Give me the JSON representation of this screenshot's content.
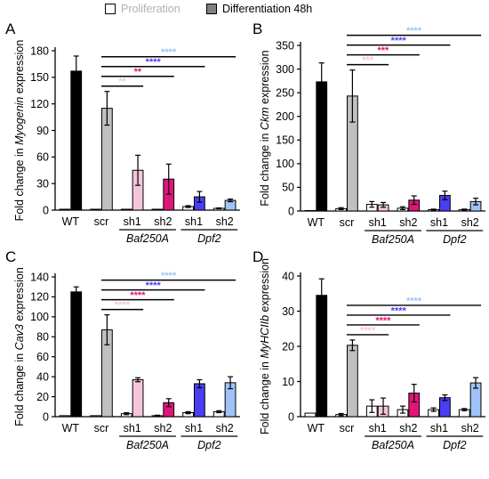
{
  "legend": {
    "proliferation": "Proliferation",
    "differentiation": "Differentiation 48h",
    "colors": {
      "proliferation": "#ffffff",
      "differentiation": "#808080"
    }
  },
  "colors": {
    "WT": "#000000",
    "scr": "#c0c0c0",
    "Baf250A-sh1": "#f4c6dc",
    "Baf250A-sh2": "#e0157a",
    "Dpf2-sh1": "#4a3ef2",
    "Dpf2-sh2": "#9fc3f7"
  },
  "chart_data": [
    {
      "panel": "A",
      "type": "bar",
      "ylabel_prefix": "Fold change in ",
      "ylabel_gene": "Myogenin",
      "ylabel_suffix": " expression",
      "ylim": [
        0,
        180
      ],
      "yticks": [
        "0",
        "30",
        "60",
        "90",
        "120",
        "150",
        "180"
      ],
      "categories": [
        "WT",
        "scr",
        "sh1",
        "sh2",
        "sh1",
        "sh2"
      ],
      "groups": [
        "Baf250A",
        "Dpf2"
      ],
      "series": [
        {
          "name": "Proliferation",
          "values": [
            1,
            1,
            1,
            1,
            4,
            2
          ],
          "errors": [
            0,
            0,
            0,
            0,
            1,
            0.5
          ]
        },
        {
          "name": "Differentiation 48h",
          "values": [
            157,
            115,
            45,
            35,
            15,
            11
          ],
          "errors": [
            17,
            19,
            17,
            17,
            6,
            1.5
          ]
        }
      ],
      "significance": [
        {
          "to": "Dpf2 sh2",
          "label": "****",
          "color": "#9fc3f7"
        },
        {
          "to": "Dpf2 sh1",
          "label": "****",
          "color": "#4a3ef2"
        },
        {
          "to": "Baf250A sh2",
          "label": "**",
          "color": "#e0157a"
        },
        {
          "to": "Baf250A sh1",
          "label": "**",
          "color": "#f4c6dc"
        }
      ]
    },
    {
      "panel": "B",
      "type": "bar",
      "ylabel_prefix": "Fold change in ",
      "ylabel_gene": "Ckm",
      "ylabel_suffix": " expression",
      "ylim": [
        0,
        350
      ],
      "yticks": [
        "0",
        "50",
        "100",
        "150",
        "200",
        "250",
        "300",
        "350"
      ],
      "categories": [
        "WT",
        "scr",
        "sh1",
        "sh2",
        "sh1",
        "sh2"
      ],
      "groups": [
        "Baf250A",
        "Dpf2"
      ],
      "series": [
        {
          "name": "Proliferation",
          "values": [
            1,
            5,
            14,
            6,
            3,
            3
          ],
          "errors": [
            0,
            2,
            6,
            3,
            1,
            1
          ]
        },
        {
          "name": "Differentiation 48h",
          "values": [
            273,
            243,
            13,
            23,
            33,
            20
          ],
          "errors": [
            40,
            55,
            5,
            9,
            9,
            7
          ]
        }
      ],
      "significance": [
        {
          "to": "Dpf2 sh2",
          "label": "****",
          "color": "#9fc3f7"
        },
        {
          "to": "Dpf2 sh1",
          "label": "****",
          "color": "#4a3ef2"
        },
        {
          "to": "Baf250A sh2",
          "label": "***",
          "color": "#e0157a"
        },
        {
          "to": "Baf250A sh1",
          "label": "***",
          "color": "#f4c6dc"
        }
      ]
    },
    {
      "panel": "C",
      "type": "bar",
      "ylabel_prefix": "Fold change in ",
      "ylabel_gene": "Cav3",
      "ylabel_suffix": " expression",
      "ylim": [
        0,
        140
      ],
      "yticks": [
        "0",
        "20",
        "40",
        "60",
        "80",
        "100",
        "120",
        "140"
      ],
      "categories": [
        "WT",
        "scr",
        "sh1",
        "sh2",
        "sh1",
        "sh2"
      ],
      "groups": [
        "Baf250A",
        "Dpf2"
      ],
      "series": [
        {
          "name": "Proliferation",
          "values": [
            1,
            1,
            3,
            1,
            4,
            5
          ],
          "errors": [
            0,
            0,
            1,
            0.5,
            1,
            1
          ]
        },
        {
          "name": "Differentiation 48h",
          "values": [
            125,
            87,
            37,
            14,
            33,
            34
          ],
          "errors": [
            5,
            15,
            2,
            4,
            4,
            6
          ]
        }
      ],
      "significance": [
        {
          "to": "Dpf2 sh2",
          "label": "****",
          "color": "#9fc3f7"
        },
        {
          "to": "Dpf2 sh1",
          "label": "****",
          "color": "#4a3ef2"
        },
        {
          "to": "Baf250A sh2",
          "label": "****",
          "color": "#e0157a"
        },
        {
          "to": "Baf250A sh1",
          "label": "****",
          "color": "#f4c6dc"
        }
      ]
    },
    {
      "panel": "D",
      "type": "bar",
      "ylabel_prefix": "Fold change in ",
      "ylabel_gene": "MyHCIIb",
      "ylabel_suffix": " expression",
      "ylim": [
        0,
        40
      ],
      "yticks": [
        "0",
        "10",
        "20",
        "30",
        "40"
      ],
      "categories": [
        "WT",
        "scr",
        "sh1",
        "sh2",
        "sh1",
        "sh2"
      ],
      "groups": [
        "Baf250A",
        "Dpf2"
      ],
      "series": [
        {
          "name": "Proliferation",
          "values": [
            1,
            0.6,
            3,
            2,
            2,
            2
          ],
          "errors": [
            0,
            0.3,
            1.8,
            1,
            0.5,
            0.3
          ]
        },
        {
          "name": "Differentiation 48h",
          "values": [
            34.5,
            20.3,
            3,
            6.7,
            5.4,
            9.6
          ],
          "errors": [
            4.7,
            1.5,
            2.3,
            2.5,
            0.8,
            1.5
          ]
        }
      ],
      "significance": [
        {
          "to": "Dpf2 sh2",
          "label": "****",
          "color": "#9fc3f7"
        },
        {
          "to": "Dpf2 sh1",
          "label": "****",
          "color": "#4a3ef2"
        },
        {
          "to": "Baf250A sh2",
          "label": "****",
          "color": "#e0157a"
        },
        {
          "to": "Baf250A sh1",
          "label": "****",
          "color": "#f4c6dc"
        }
      ]
    }
  ]
}
